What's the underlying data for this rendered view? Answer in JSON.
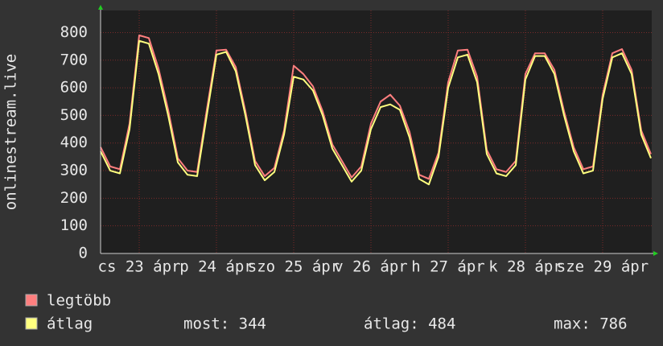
{
  "chart_data": {
    "type": "line",
    "ylabel": "onlinestream.live",
    "x": [
      0,
      3,
      6,
      9,
      12,
      15,
      18,
      21,
      24,
      27,
      30,
      33,
      36,
      39,
      42,
      45,
      48,
      51,
      54,
      57,
      60,
      63,
      66,
      69,
      72,
      75,
      78,
      81,
      84,
      87,
      90,
      93,
      96,
      99,
      102,
      105,
      108,
      111,
      114,
      117,
      120,
      123,
      126,
      129,
      132,
      135,
      138,
      141,
      144,
      147,
      150,
      153,
      156,
      159,
      162,
      165,
      168,
      171
    ],
    "xlim": [
      0,
      171.25
    ],
    "xticks": [
      {
        "value": 12,
        "label": "cs 23 ápr"
      },
      {
        "value": 36,
        "label": "p 24 ápr"
      },
      {
        "value": 60,
        "label": "szo 25 ápr"
      },
      {
        "value": 84,
        "label": "v 26 ápr"
      },
      {
        "value": 108,
        "label": "h 27 ápr"
      },
      {
        "value": 132,
        "label": "k 28 ápr"
      },
      {
        "value": 156,
        "label": "sze 29 ápr"
      }
    ],
    "ylim": [
      0,
      880
    ],
    "yticks": [
      0,
      100,
      200,
      300,
      400,
      500,
      600,
      700,
      800
    ],
    "grid": true,
    "series": [
      {
        "name": "legtöbb",
        "color": "#ff7f7f",
        "values": [
          385,
          315,
          305,
          470,
          790,
          780,
          670,
          520,
          345,
          300,
          295,
          520,
          735,
          738,
          675,
          515,
          335,
          280,
          310,
          445,
          680,
          650,
          605,
          515,
          395,
          335,
          275,
          315,
          470,
          550,
          575,
          535,
          440,
          285,
          270,
          365,
          620,
          735,
          738,
          640,
          375,
          305,
          295,
          335,
          650,
          725,
          725,
          665,
          515,
          385,
          305,
          315,
          575,
          725,
          740,
          665,
          445,
          360
        ]
      },
      {
        "name": "átlag",
        "color": "#ffff7f",
        "values": [
          370,
          300,
          290,
          450,
          770,
          760,
          650,
          500,
          330,
          285,
          280,
          500,
          720,
          730,
          660,
          500,
          320,
          265,
          295,
          430,
          640,
          630,
          590,
          500,
          380,
          320,
          260,
          300,
          450,
          530,
          540,
          520,
          420,
          270,
          250,
          350,
          600,
          710,
          720,
          620,
          360,
          290,
          280,
          320,
          630,
          715,
          715,
          650,
          500,
          370,
          290,
          300,
          560,
          710,
          725,
          650,
          430,
          345
        ]
      }
    ],
    "stats": [
      "most: 344",
      "átlag: 484",
      "max: 786"
    ]
  }
}
